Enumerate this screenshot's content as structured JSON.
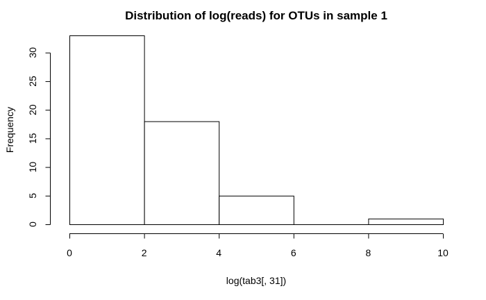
{
  "chart_data": {
    "type": "bar",
    "title": "Distribution of log(reads) for OTUs in sample 1",
    "xlabel": "log(tab3[, 31])",
    "ylabel": "Frequency",
    "bins": [
      {
        "from": 0,
        "to": 2,
        "count": 33
      },
      {
        "from": 2,
        "to": 4,
        "count": 18
      },
      {
        "from": 4,
        "to": 6,
        "count": 5
      },
      {
        "from": 6,
        "to": 8,
        "count": 0
      },
      {
        "from": 8,
        "to": 10,
        "count": 1
      }
    ],
    "x_ticks": [
      0,
      2,
      4,
      6,
      8,
      10
    ],
    "y_ticks": [
      0,
      5,
      10,
      15,
      20,
      25,
      30
    ],
    "xlim": [
      0,
      10
    ],
    "ylim": [
      0,
      33
    ],
    "grid": false,
    "bar_fill": "#ffffff",
    "bar_stroke": "#000000"
  }
}
